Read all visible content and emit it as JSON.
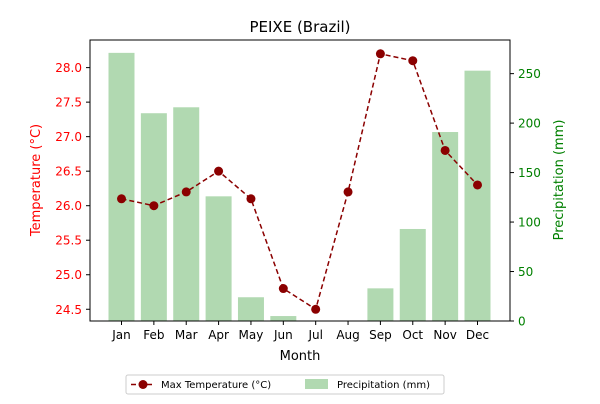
{
  "chart_data": {
    "type": "bar+line",
    "title": "PEIXE (Brazil)",
    "xlabel": "Month",
    "ylabel_left": "Temperature (°C)",
    "ylabel_right": "Precipitation (mm)",
    "categories": [
      "Jan",
      "Feb",
      "Mar",
      "Apr",
      "May",
      "Jun",
      "Jul",
      "Aug",
      "Sep",
      "Oct",
      "Nov",
      "Dec"
    ],
    "y_left": {
      "lim": [
        24.33,
        28.4
      ],
      "ticks": [
        "24.5",
        "25.0",
        "25.5",
        "26.0",
        "26.5",
        "27.0",
        "27.5",
        "28.0"
      ]
    },
    "y_right": {
      "lim": [
        0,
        284
      ],
      "ticks": [
        "0",
        "50",
        "100",
        "150",
        "200",
        "250"
      ]
    },
    "series": [
      {
        "name": "Max Temperature (°C)",
        "kind": "line",
        "axis": "left",
        "color": "#8b0000",
        "style": "dashed",
        "marker": "circle",
        "values": [
          26.1,
          26.0,
          26.2,
          26.5,
          26.1,
          24.8,
          24.5,
          26.2,
          28.2,
          28.1,
          26.8,
          26.3
        ]
      },
      {
        "name": "Precipitation (mm)",
        "kind": "bar",
        "axis": "right",
        "color": "#b1d9b1",
        "values": [
          271,
          210,
          216,
          126,
          24,
          5,
          0,
          0,
          33,
          93,
          191,
          253
        ]
      }
    ],
    "grid": false,
    "legend": {
      "placement": "bottom-center"
    }
  },
  "colors": {
    "left_axis": "#ff0000",
    "right_axis": "#008000",
    "text": "#000000"
  }
}
